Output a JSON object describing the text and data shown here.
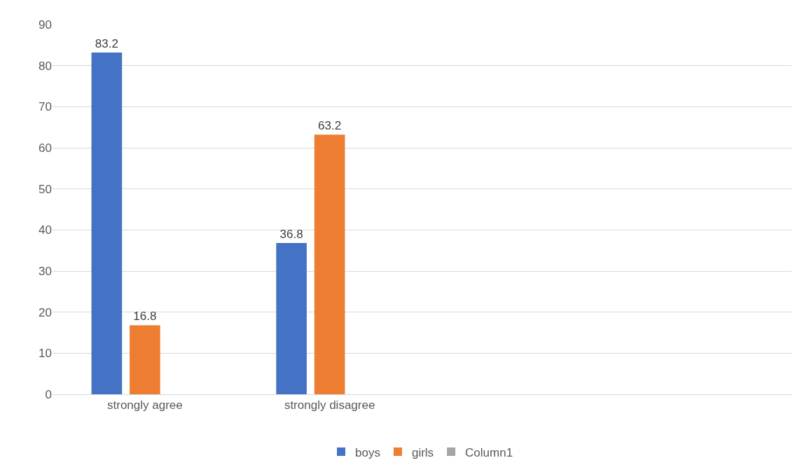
{
  "chart_data": {
    "type": "bar",
    "categories": [
      "strongly agree",
      "strongly disagree",
      null,
      null
    ],
    "series": [
      {
        "name": "boys",
        "color": "#4472c4",
        "values": [
          83.2,
          36.8,
          null,
          null
        ]
      },
      {
        "name": "girls",
        "color": "#ed7d31",
        "values": [
          16.8,
          63.2,
          null,
          null
        ]
      },
      {
        "name": "Column1",
        "color": "#a5a5a5",
        "values": [
          null,
          null,
          null,
          null
        ]
      }
    ],
    "ylim": [
      0,
      90
    ],
    "yticks": [
      0,
      10,
      20,
      30,
      40,
      50,
      60,
      70,
      80,
      90
    ],
    "grid": "y",
    "legend": "bottom",
    "data_labels": true
  }
}
